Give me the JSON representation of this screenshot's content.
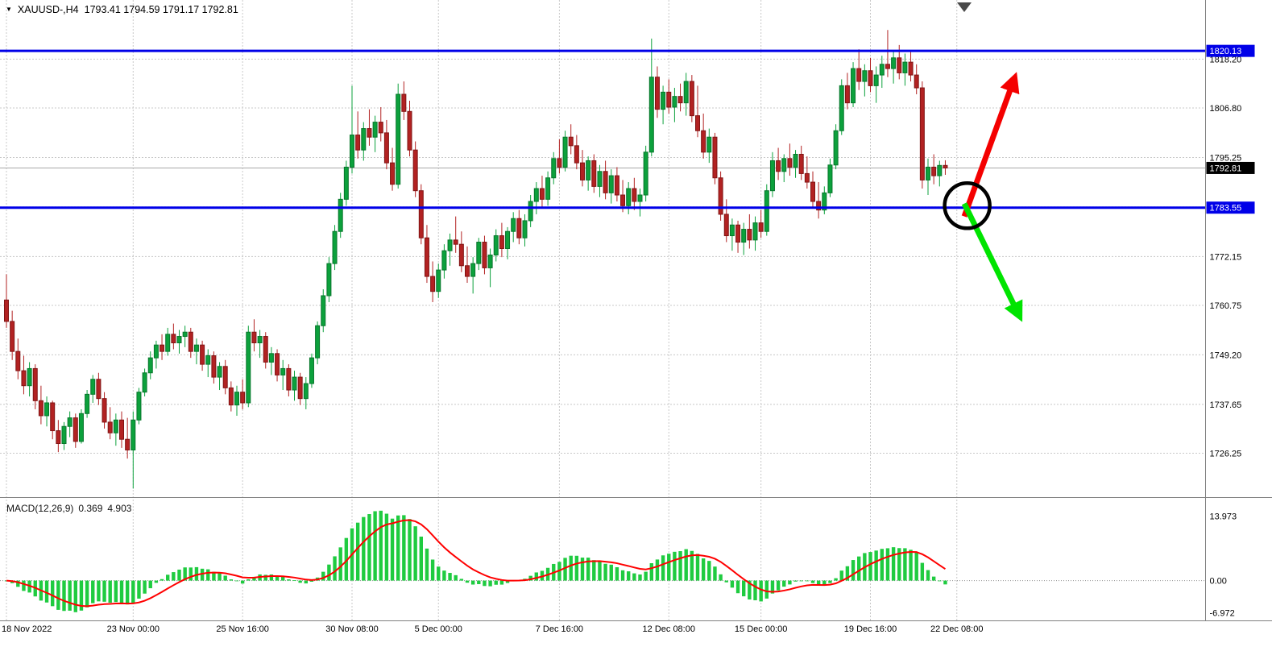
{
  "header": {
    "symbol_period": "XAUUSD-,H4",
    "ohlc": "1793.41 1794.59 1791.17 1792.81"
  },
  "colors": {
    "bull": "#0CA13C",
    "bull_border": "#07762B",
    "bear": "#B22222",
    "bear_border": "#801414",
    "macd_hist": "#1FCB40",
    "macd_signal": "#FF0000",
    "hline": "#0000E8",
    "arrow_up_color": "#F40000",
    "arrow_down_color": "#00E400",
    "grid": "#C8C8C8",
    "separator": "#808080",
    "current_price_line": "#A8A8A8",
    "axis_text": "#000000",
    "tag_text": "#FFFFFF",
    "current_tag_bg": "#000000",
    "shift_marker": "#4A4A4A"
  },
  "chart_data": {
    "type": "candlestick",
    "symbol": "XAUUSD-",
    "timeframe": "H4",
    "title": "XAUUSD-,H4 1793.41 1794.59 1791.17 1792.81",
    "current_bar": {
      "open": 1793.41,
      "high": 1794.59,
      "low": 1791.17,
      "close": 1792.81
    },
    "price_range": [
      1716,
      1832
    ],
    "grid": true,
    "price_axis_ticks": [
      "1818.20",
      "1806.80",
      "1795.25",
      "1783.70",
      "1772.15",
      "1760.75",
      "1749.20",
      "1737.65",
      "1726.25"
    ],
    "x_ticks": [
      {
        "i": 0,
        "label": "18 Nov 2022"
      },
      {
        "i": 22,
        "label": "23 Nov 00:00"
      },
      {
        "i": 41,
        "label": "25 Nov 16:00"
      },
      {
        "i": 60,
        "label": "30 Nov 08:00"
      },
      {
        "i": 75,
        "label": "5 Dec 00:00"
      },
      {
        "i": 96,
        "label": "7 Dec 16:00"
      },
      {
        "i": 115,
        "label": "12 Dec 08:00"
      },
      {
        "i": 131,
        "label": "15 Dec 00:00"
      },
      {
        "i": 150,
        "label": "19 Dec 16:00"
      },
      {
        "i": 165,
        "label": "22 Dec 08:00"
      }
    ],
    "candles": [
      [
        1762.0,
        1768.0,
        1755.5,
        1757.0
      ],
      [
        1757.0,
        1759.5,
        1748.0,
        1750.0
      ],
      [
        1750.0,
        1753.0,
        1743.5,
        1745.5
      ],
      [
        1745.5,
        1749.0,
        1740.0,
        1742.0
      ],
      [
        1742.0,
        1747.5,
        1739.5,
        1746.0
      ],
      [
        1746.0,
        1747.0,
        1736.5,
        1738.5
      ],
      [
        1738.5,
        1742.0,
        1733.0,
        1735.0
      ],
      [
        1735.0,
        1739.5,
        1732.5,
        1738.0
      ],
      [
        1738.0,
        1738.5,
        1729.5,
        1731.5
      ],
      [
        1731.5,
        1734.0,
        1726.5,
        1728.5
      ],
      [
        1728.5,
        1733.5,
        1727.0,
        1732.5
      ],
      [
        1732.5,
        1736.0,
        1730.0,
        1734.5
      ],
      [
        1734.5,
        1735.5,
        1727.5,
        1729.0
      ],
      [
        1729.0,
        1736.5,
        1728.5,
        1735.5
      ],
      [
        1735.5,
        1741.0,
        1734.5,
        1740.0
      ],
      [
        1740.0,
        1744.5,
        1738.0,
        1743.5
      ],
      [
        1743.5,
        1745.0,
        1737.5,
        1739.0
      ],
      [
        1739.0,
        1740.5,
        1732.0,
        1733.5
      ],
      [
        1733.5,
        1737.0,
        1729.5,
        1731.0
      ],
      [
        1731.0,
        1735.5,
        1728.0,
        1734.0
      ],
      [
        1734.0,
        1736.0,
        1727.5,
        1729.5
      ],
      [
        1729.5,
        1734.5,
        1725.0,
        1727.0
      ],
      [
        1727.0,
        1736.0,
        1718.0,
        1734.0
      ],
      [
        1734.0,
        1741.5,
        1733.0,
        1740.5
      ],
      [
        1740.5,
        1746.0,
        1739.5,
        1745.0
      ],
      [
        1745.0,
        1750.0,
        1743.5,
        1748.5
      ],
      [
        1748.5,
        1752.5,
        1746.0,
        1751.5
      ],
      [
        1751.5,
        1754.0,
        1748.0,
        1750.0
      ],
      [
        1750.0,
        1755.5,
        1749.0,
        1754.0
      ],
      [
        1754.0,
        1756.5,
        1750.5,
        1752.0
      ],
      [
        1752.0,
        1755.0,
        1749.5,
        1753.5
      ],
      [
        1753.5,
        1756.0,
        1751.0,
        1754.5
      ],
      [
        1754.5,
        1755.5,
        1748.5,
        1750.0
      ],
      [
        1750.0,
        1753.0,
        1747.0,
        1751.5
      ],
      [
        1751.5,
        1752.5,
        1745.5,
        1747.0
      ],
      [
        1747.0,
        1750.5,
        1744.0,
        1749.0
      ],
      [
        1749.0,
        1750.0,
        1742.5,
        1744.0
      ],
      [
        1744.0,
        1747.5,
        1741.0,
        1746.5
      ],
      [
        1746.5,
        1748.0,
        1740.0,
        1741.5
      ],
      [
        1741.5,
        1743.0,
        1736.0,
        1737.5
      ],
      [
        1737.5,
        1742.0,
        1735.0,
        1740.5
      ],
      [
        1740.5,
        1743.5,
        1736.5,
        1738.0
      ],
      [
        1738.0,
        1756.0,
        1737.0,
        1754.5
      ],
      [
        1754.5,
        1757.5,
        1750.0,
        1752.0
      ],
      [
        1752.0,
        1755.0,
        1748.5,
        1753.5
      ],
      [
        1753.5,
        1754.5,
        1746.0,
        1747.5
      ],
      [
        1747.5,
        1751.0,
        1744.5,
        1749.5
      ],
      [
        1749.5,
        1750.5,
        1743.0,
        1744.5
      ],
      [
        1744.5,
        1748.0,
        1741.0,
        1746.0
      ],
      [
        1746.0,
        1747.0,
        1739.5,
        1741.0
      ],
      [
        1741.0,
        1745.5,
        1738.5,
        1744.0
      ],
      [
        1744.0,
        1745.0,
        1737.5,
        1739.0
      ],
      [
        1739.0,
        1744.0,
        1736.5,
        1742.5
      ],
      [
        1742.5,
        1749.5,
        1741.5,
        1748.5
      ],
      [
        1748.5,
        1757.0,
        1747.0,
        1756.0
      ],
      [
        1756.0,
        1764.5,
        1754.5,
        1763.0
      ],
      [
        1763.0,
        1772.0,
        1761.5,
        1770.5
      ],
      [
        1770.5,
        1779.5,
        1769.0,
        1778.0
      ],
      [
        1778.0,
        1787.0,
        1776.5,
        1785.5
      ],
      [
        1785.5,
        1794.5,
        1784.0,
        1793.0
      ],
      [
        1793.0,
        1812.0,
        1791.5,
        1800.5
      ],
      [
        1800.5,
        1806.0,
        1795.0,
        1797.0
      ],
      [
        1797.0,
        1803.5,
        1794.5,
        1802.0
      ],
      [
        1802.0,
        1806.5,
        1798.0,
        1800.0
      ],
      [
        1800.0,
        1805.0,
        1796.5,
        1803.5
      ],
      [
        1803.5,
        1807.0,
        1799.0,
        1801.0
      ],
      [
        1801.0,
        1804.0,
        1792.5,
        1794.0
      ],
      [
        1794.0,
        1797.5,
        1787.5,
        1789.0
      ],
      [
        1789.0,
        1812.5,
        1788.0,
        1810.0
      ],
      [
        1810.0,
        1813.0,
        1804.0,
        1806.0
      ],
      [
        1806.0,
        1808.5,
        1795.5,
        1797.0
      ],
      [
        1797.0,
        1799.0,
        1786.0,
        1787.5
      ],
      [
        1787.5,
        1789.0,
        1775.0,
        1776.5
      ],
      [
        1776.5,
        1779.5,
        1766.0,
        1767.5
      ],
      [
        1767.5,
        1771.0,
        1761.5,
        1764.0
      ],
      [
        1764.0,
        1770.5,
        1762.5,
        1769.0
      ],
      [
        1769.0,
        1775.0,
        1767.0,
        1773.5
      ],
      [
        1773.5,
        1777.5,
        1770.0,
        1776.0
      ],
      [
        1776.0,
        1781.5,
        1773.0,
        1775.0
      ],
      [
        1775.0,
        1778.0,
        1768.5,
        1770.0
      ],
      [
        1770.0,
        1774.5,
        1766.0,
        1767.5
      ],
      [
        1767.5,
        1772.0,
        1763.5,
        1770.5
      ],
      [
        1770.5,
        1776.5,
        1769.0,
        1775.5
      ],
      [
        1775.5,
        1777.0,
        1768.0,
        1769.5
      ],
      [
        1769.5,
        1774.0,
        1765.0,
        1772.5
      ],
      [
        1772.5,
        1778.5,
        1771.0,
        1777.0
      ],
      [
        1777.0,
        1780.0,
        1772.0,
        1774.0
      ],
      [
        1774.0,
        1779.0,
        1771.5,
        1778.0
      ],
      [
        1778.0,
        1782.5,
        1775.5,
        1781.0
      ],
      [
        1781.0,
        1783.0,
        1775.0,
        1776.5
      ],
      [
        1776.5,
        1782.0,
        1774.5,
        1780.5
      ],
      [
        1780.5,
        1786.5,
        1779.0,
        1785.0
      ],
      [
        1785.0,
        1789.5,
        1782.0,
        1788.0
      ],
      [
        1788.0,
        1791.0,
        1783.5,
        1785.5
      ],
      [
        1785.5,
        1792.0,
        1784.0,
        1790.5
      ],
      [
        1790.5,
        1796.5,
        1789.0,
        1795.0
      ],
      [
        1795.0,
        1799.5,
        1791.5,
        1793.0
      ],
      [
        1793.0,
        1801.5,
        1792.0,
        1800.0
      ],
      [
        1800.0,
        1803.0,
        1796.0,
        1798.0
      ],
      [
        1798.0,
        1800.5,
        1792.5,
        1794.0
      ],
      [
        1794.0,
        1797.0,
        1788.5,
        1790.0
      ],
      [
        1790.0,
        1795.5,
        1787.5,
        1794.5
      ],
      [
        1794.5,
        1796.0,
        1787.0,
        1788.5
      ],
      [
        1788.5,
        1793.5,
        1786.0,
        1792.0
      ],
      [
        1792.0,
        1794.5,
        1785.5,
        1787.0
      ],
      [
        1787.0,
        1792.5,
        1784.5,
        1791.0
      ],
      [
        1791.0,
        1793.0,
        1785.0,
        1786.5
      ],
      [
        1786.5,
        1790.0,
        1782.5,
        1784.0
      ],
      [
        1784.0,
        1789.5,
        1782.0,
        1788.0
      ],
      [
        1788.0,
        1790.5,
        1783.0,
        1785.0
      ],
      [
        1785.0,
        1788.0,
        1781.5,
        1786.5
      ],
      [
        1786.5,
        1798.0,
        1785.0,
        1796.5
      ],
      [
        1796.5,
        1823.0,
        1795.5,
        1814.0
      ],
      [
        1814.0,
        1816.5,
        1804.5,
        1806.5
      ],
      [
        1806.5,
        1812.0,
        1803.0,
        1810.5
      ],
      [
        1810.5,
        1813.5,
        1805.5,
        1807.0
      ],
      [
        1807.0,
        1811.5,
        1803.5,
        1809.5
      ],
      [
        1809.5,
        1812.5,
        1806.0,
        1808.0
      ],
      [
        1808.0,
        1815.0,
        1805.0,
        1813.0
      ],
      [
        1813.0,
        1814.5,
        1803.5,
        1805.0
      ],
      [
        1805.0,
        1812.0,
        1800.0,
        1801.5
      ],
      [
        1801.5,
        1805.5,
        1795.0,
        1796.5
      ],
      [
        1796.5,
        1802.0,
        1794.0,
        1800.0
      ],
      [
        1800.0,
        1801.0,
        1789.0,
        1790.5
      ],
      [
        1790.5,
        1792.0,
        1780.5,
        1782.0
      ],
      [
        1782.0,
        1785.5,
        1775.5,
        1777.0
      ],
      [
        1777.0,
        1781.0,
        1773.5,
        1779.5
      ],
      [
        1779.5,
        1780.5,
        1773.0,
        1775.5
      ],
      [
        1775.5,
        1780.0,
        1772.5,
        1778.5
      ],
      [
        1778.5,
        1782.0,
        1774.0,
        1776.0
      ],
      [
        1776.0,
        1781.5,
        1773.5,
        1780.0
      ],
      [
        1780.0,
        1783.0,
        1776.5,
        1778.0
      ],
      [
        1778.0,
        1789.0,
        1777.0,
        1787.5
      ],
      [
        1787.5,
        1796.5,
        1786.0,
        1794.5
      ],
      [
        1794.5,
        1797.5,
        1790.0,
        1792.0
      ],
      [
        1792.0,
        1796.0,
        1789.5,
        1795.0
      ],
      [
        1795.0,
        1798.5,
        1791.0,
        1793.0
      ],
      [
        1793.0,
        1797.0,
        1790.5,
        1796.0
      ],
      [
        1796.0,
        1798.0,
        1790.0,
        1791.5
      ],
      [
        1791.5,
        1795.5,
        1788.0,
        1789.5
      ],
      [
        1789.5,
        1792.0,
        1783.5,
        1785.0
      ],
      [
        1785.0,
        1789.5,
        1781.0,
        1783.0
      ],
      [
        1783.0,
        1788.5,
        1782.0,
        1787.0
      ],
      [
        1787.0,
        1795.0,
        1786.0,
        1793.5
      ],
      [
        1793.5,
        1803.0,
        1792.5,
        1801.5
      ],
      [
        1801.5,
        1813.5,
        1800.5,
        1812.0
      ],
      [
        1812.0,
        1815.0,
        1806.5,
        1808.0
      ],
      [
        1808.0,
        1817.5,
        1807.0,
        1816.0
      ],
      [
        1816.0,
        1820.5,
        1811.0,
        1813.0
      ],
      [
        1813.0,
        1817.0,
        1809.5,
        1815.5
      ],
      [
        1815.5,
        1818.5,
        1810.5,
        1812.0
      ],
      [
        1812.0,
        1816.5,
        1808.0,
        1814.5
      ],
      [
        1814.5,
        1819.0,
        1811.5,
        1817.0
      ],
      [
        1817.0,
        1825.0,
        1814.0,
        1816.0
      ],
      [
        1816.0,
        1820.0,
        1812.5,
        1818.5
      ],
      [
        1818.5,
        1821.5,
        1813.5,
        1815.0
      ],
      [
        1815.0,
        1819.5,
        1812.0,
        1817.5
      ],
      [
        1817.5,
        1820.0,
        1813.0,
        1814.5
      ],
      [
        1814.5,
        1817.0,
        1810.0,
        1811.5
      ],
      [
        1811.5,
        1813.0,
        1788.0,
        1790.0
      ],
      [
        1790.0,
        1795.0,
        1786.5,
        1793.0
      ],
      [
        1793.0,
        1796.0,
        1789.0,
        1791.0
      ],
      [
        1791.0,
        1794.5,
        1788.5,
        1793.4
      ],
      [
        1793.4,
        1794.6,
        1791.2,
        1792.8
      ]
    ],
    "hlines": [
      {
        "name": "resistance-line",
        "price": 1820.13,
        "label": "1820.13"
      },
      {
        "name": "support-line",
        "price": 1783.55,
        "label": "1783.55"
      }
    ],
    "current_price_label": {
      "price": 1792.81,
      "label": "1792.81"
    },
    "macd": {
      "label": "MACD(12,26,9)",
      "value_main": "0.369",
      "value_signal": "4.903",
      "params": [
        12,
        26,
        9
      ],
      "range": [
        -8.6,
        17.5
      ],
      "axis_ticks": [
        "13.973",
        "0.00",
        "-6.972"
      ]
    },
    "annotations": {
      "circle": {
        "name": "breakout-circle-annotation",
        "i": 166.8,
        "p": 1784.0,
        "r": 28
      },
      "arrows": [
        {
          "name": "bullish-arrow-annotation",
          "direction": "up",
          "marker": "head-red",
          "from": {
            "i": 166.3,
            "p": 1781.5
          },
          "to": {
            "i": 174.8,
            "p": 1813.0
          }
        },
        {
          "name": "bearish-arrow-annotation",
          "direction": "down",
          "marker": "head-green",
          "from": {
            "i": 166.3,
            "p": 1784.5
          },
          "to": {
            "i": 175.6,
            "p": 1759.0
          }
        }
      ]
    }
  }
}
